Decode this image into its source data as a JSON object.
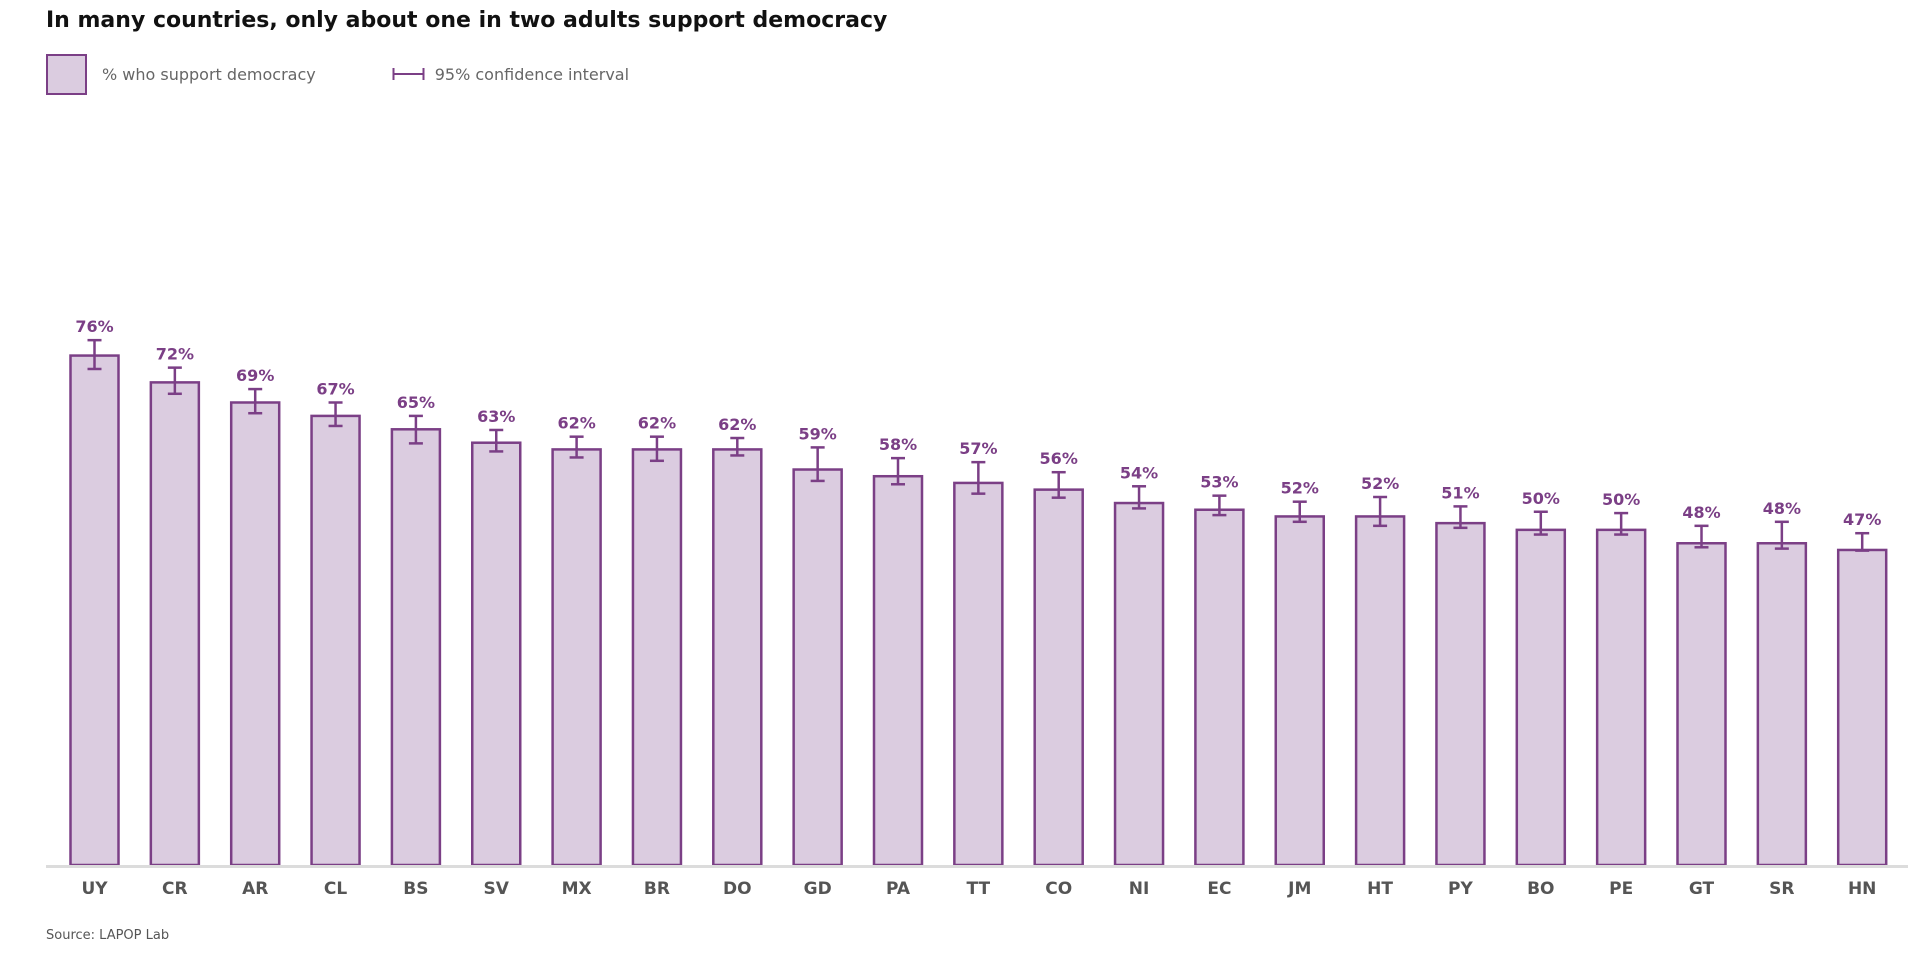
{
  "title": "In many countries, only about one in two adults support democracy",
  "legend": {
    "bar_label": "% who support democracy",
    "ci_label": "95% confidence interval"
  },
  "source": "Source: LAPOP Lab",
  "colors": {
    "bar_fill": "#dbcce0",
    "bar_stroke": "#7b3f86",
    "label": "#7b3f86",
    "axis": "#dcdcdc",
    "tick_label": "#555555"
  },
  "chart_data": {
    "type": "bar",
    "title": "In many countries, only about one in two adults support democracy",
    "categories": [
      "UY",
      "CR",
      "AR",
      "CL",
      "BS",
      "SV",
      "MX",
      "BR",
      "DO",
      "GD",
      "PA",
      "TT",
      "CO",
      "NI",
      "EC",
      "JM",
      "HT",
      "PY",
      "BO",
      "PE",
      "GT",
      "SR",
      "HN"
    ],
    "series": [
      {
        "name": "% who support democracy",
        "values": [
          76,
          72,
          69,
          67,
          65,
          63,
          62,
          62,
          62,
          59,
          58,
          57,
          56,
          54,
          53,
          52,
          52,
          51,
          50,
          50,
          48,
          48,
          47
        ],
        "labels": [
          "76%",
          "72%",
          "69%",
          "67%",
          "65%",
          "63%",
          "62%",
          "62%",
          "62%",
          "59%",
          "58%",
          "57%",
          "56%",
          "54%",
          "53%",
          "52%",
          "52%",
          "51%",
          "50%",
          "50%",
          "48%",
          "48%",
          "47%"
        ],
        "ci_low": [
          74.0,
          70.3,
          67.4,
          65.5,
          62.9,
          61.7,
          60.8,
          60.3,
          61.1,
          57.3,
          56.8,
          55.4,
          54.8,
          53.2,
          52.2,
          51.2,
          50.6,
          50.3,
          49.3,
          49.3,
          47.4,
          47.2,
          46.9
        ],
        "ci_high": [
          78.3,
          74.2,
          71.0,
          69.0,
          67.0,
          64.9,
          63.9,
          63.9,
          63.7,
          62.3,
          60.7,
          60.1,
          58.6,
          56.5,
          55.1,
          54.2,
          54.9,
          53.5,
          52.7,
          52.5,
          50.6,
          51.2,
          49.5
        ]
      }
    ],
    "ylim": [
      0,
      100
    ],
    "grid": false,
    "legend_position": "top-left"
  }
}
